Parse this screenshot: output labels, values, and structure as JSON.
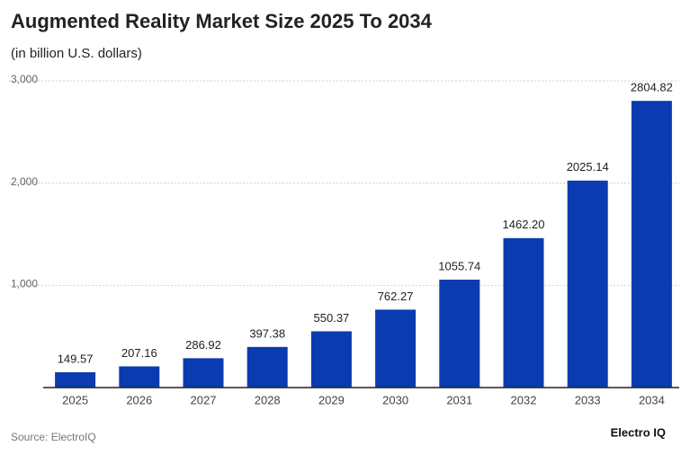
{
  "chart_data": {
    "type": "bar",
    "title": "Augmented Reality Market Size 2025 To 2034",
    "subtitle": "(in billion U.S. dollars)",
    "categories": [
      "2025",
      "2026",
      "2027",
      "2028",
      "2029",
      "2030",
      "2031",
      "2032",
      "2033",
      "2034"
    ],
    "values": [
      149.57,
      207.16,
      286.92,
      397.38,
      550.37,
      762.27,
      1055.74,
      1462.2,
      2025.14,
      2804.82
    ],
    "value_labels": [
      "149.57",
      "207.16",
      "286.92",
      "397.38",
      "550.37",
      "762.27",
      "1055.74",
      "1462.20",
      "2025.14",
      "2804.82"
    ],
    "color": "#0b3bb0",
    "ylim": [
      0,
      3000
    ],
    "yticks": [
      {
        "value": 1000,
        "label": "1,000"
      },
      {
        "value": 2000,
        "label": "2,000"
      },
      {
        "value": 3000,
        "label": "3,000"
      }
    ],
    "grid": true,
    "source": "Source: ElectroIQ",
    "brand": "Electro IQ"
  }
}
